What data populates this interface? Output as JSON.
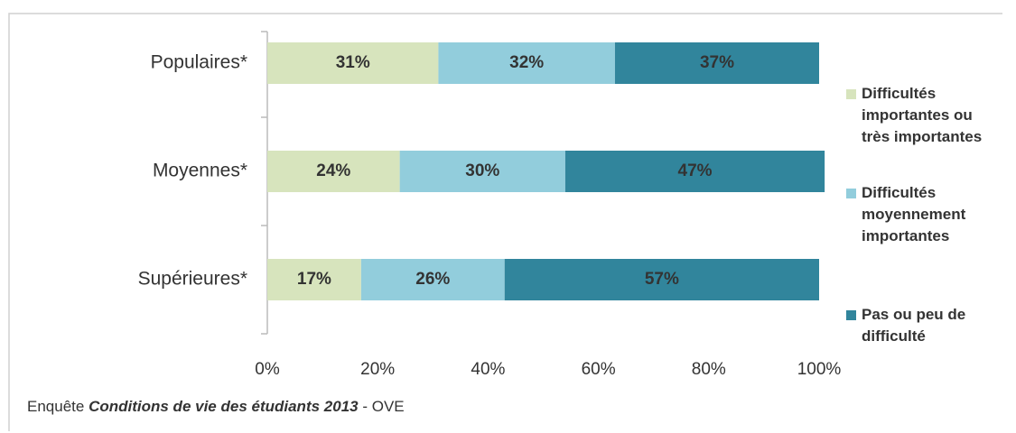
{
  "chart_data": {
    "type": "stacked-bar",
    "orientation": "horizontal",
    "categories": [
      "Populaires*",
      "Moyennes*",
      "Supérieures*"
    ],
    "series": [
      {
        "name": "Difficultés importantes ou très importantes",
        "color": "#d7e4bd",
        "values": [
          31,
          24,
          17
        ],
        "value_labels": [
          "31%",
          "24%",
          "17%"
        ]
      },
      {
        "name": "Difficultés moyennement importantes",
        "color": "#92cddc",
        "values": [
          32,
          30,
          26
        ],
        "value_labels": [
          "32%",
          "30%",
          "26%"
        ]
      },
      {
        "name": "Pas ou peu de difficulté",
        "color": "#31859c",
        "values": [
          37,
          47,
          57
        ],
        "value_labels": [
          "37%",
          "47%",
          "57%"
        ]
      }
    ],
    "xlim": [
      0,
      100
    ],
    "xticks": [
      {
        "value": 0,
        "label": "0%"
      },
      {
        "value": 20,
        "label": "20%"
      },
      {
        "value": 40,
        "label": "40%"
      },
      {
        "value": 60,
        "label": "60%"
      },
      {
        "value": 80,
        "label": "80%"
      },
      {
        "value": 100,
        "label": "100%"
      }
    ],
    "legend": "right",
    "source": {
      "prefix": "Enquête",
      "title": "Conditions de vie des étudiants 2013",
      "suffix": "- OVE"
    }
  }
}
